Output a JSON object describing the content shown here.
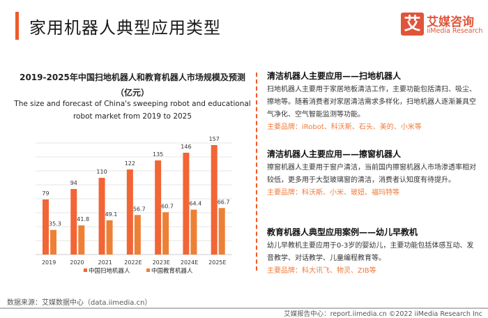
{
  "header": {
    "title": "家用机器人典型应用类型",
    "logo_cn": "艾媒咨询",
    "logo_en": "iiMedia Research",
    "logo_mark": "艾"
  },
  "chart_data": {
    "type": "bar",
    "title": "2019-2025年中国扫地机器人和教育机器人市场规模及预测（亿元）",
    "subtitle": "The size and forecast of China's sweeping robot and educational robot market from 2019 to 2025",
    "categories": [
      "2019",
      "2020",
      "2021",
      "2022E",
      "2023E",
      "2024E",
      "2025E"
    ],
    "series": [
      {
        "name": "中国扫地机器人",
        "color": "#f26535",
        "values": [
          79,
          94,
          110,
          122,
          135,
          146,
          157
        ]
      },
      {
        "name": "中国教育机器人",
        "color": "#ee8035",
        "values": [
          35.3,
          41.8,
          49.1,
          56.7,
          60.7,
          64.4,
          66.7
        ]
      }
    ],
    "ylim": [
      0,
      160
    ],
    "grid": true,
    "legend": "bottom"
  },
  "sections": [
    {
      "title": "清洁机器人主要应用——扫地机器人",
      "body": "扫地机器人主要用于家居地板清洁工作，主要功能包括清扫、吸尘、擦地等。随着消费者对家居清洁需求多样化，扫地机器人逐渐兼具空气净化、空气智能监测等功能。",
      "brands": "主要品牌：iRobot、科沃斯、石头、美的、小米等"
    },
    {
      "title": "清洁机器人主要应用——擦窗机器人",
      "body": "擦窗机器人主要用于窗户清洁，当前国内擦窗机器人市场渗透率相对较低，更多用于大型玻璃窗的清洁，消费者认知度有待提升。",
      "brands": "主要品牌：科沃斯、小米、玻妞、福玛特等"
    },
    {
      "title": "教育机器人典型应用案例——幼儿早教机",
      "body": "幼儿早教机主要应用于0-3岁的婴幼儿，主要功能包括体感互动、发音教学、对话教学、儿童编程教育等。",
      "brands": "主要品牌：科大讯飞、物灵、ZIB等"
    }
  ],
  "footer": {
    "source": "数据来源：艾媒数据中心（data.iimedia.cn）",
    "right": "艾媒报告中心：report.iimedia.cn   ©2022  iiMedia Research  Inc"
  }
}
